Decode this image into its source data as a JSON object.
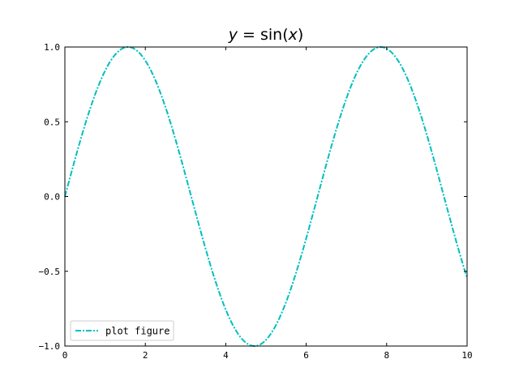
{
  "chart_data": {
    "type": "line",
    "title": {
      "lhs": "y",
      "eq": " = sin(",
      "var": "x",
      "rhs": ")"
    },
    "xlim": [
      0,
      10
    ],
    "ylim": [
      -1.0,
      1.0
    ],
    "x_ticks": [
      0,
      2,
      4,
      6,
      8,
      10
    ],
    "x_tick_labels": [
      "0",
      "2",
      "4",
      "6",
      "8",
      "10"
    ],
    "y_ticks": [
      1.0,
      0.5,
      0.0,
      -0.5,
      -1.0
    ],
    "y_tick_labels": [
      "1.0",
      "0.5",
      "0.0",
      "−0.5",
      "−1.0"
    ],
    "tick_direction": "in",
    "ticks_on_all_sides": true,
    "grid": false,
    "legend_position": "lower-left",
    "series": [
      {
        "name": "plot figure",
        "function": "sin(x)",
        "color": "#00bfbf",
        "linestyle": "dashdot",
        "x_start": 0,
        "x_end": 10,
        "samples": 200
      }
    ]
  }
}
